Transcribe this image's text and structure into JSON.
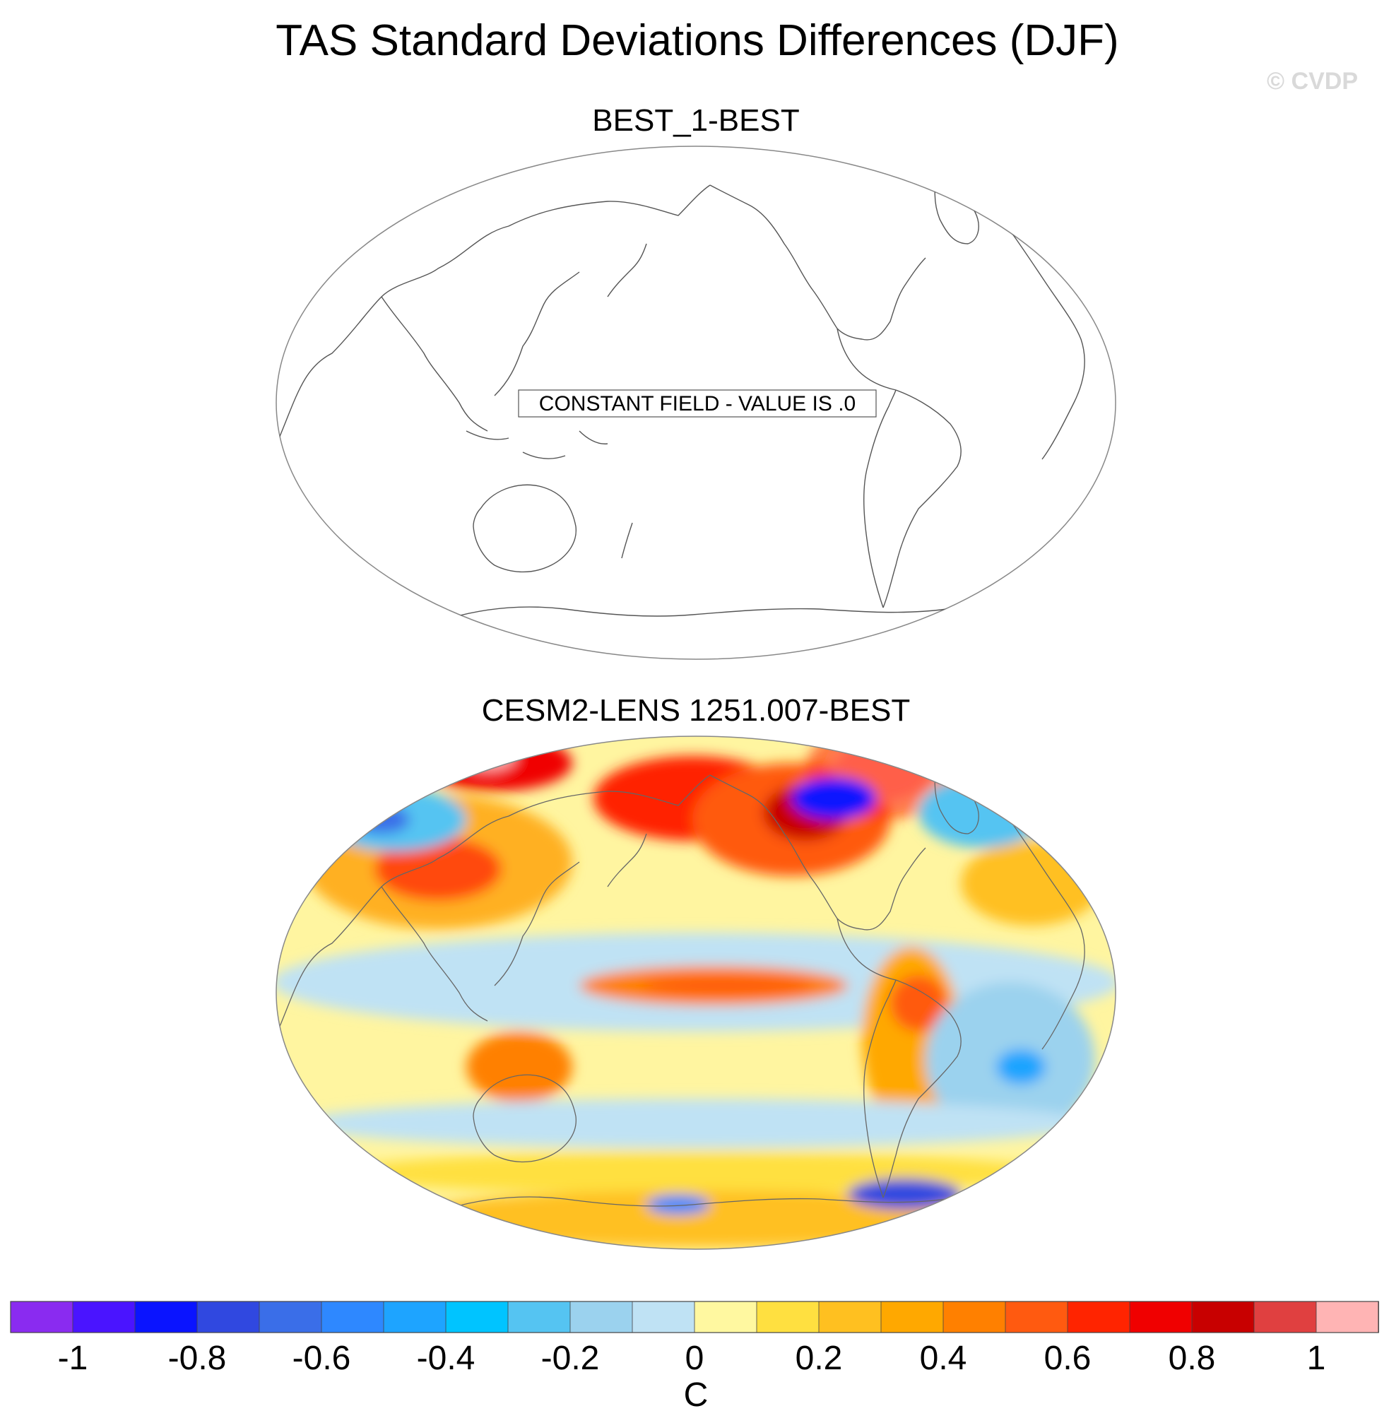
{
  "figure": {
    "title": "TAS Standard Deviations Differences (DJF)",
    "watermark": "© CVDP"
  },
  "panels": [
    {
      "id": "top",
      "title": "BEST_1-BEST",
      "note": "CONSTANT FIELD - VALUE IS .0",
      "filled": false
    },
    {
      "id": "bottom",
      "title": "CESM2-LENS 1251.007-BEST",
      "filled": true
    }
  ],
  "colorbar": {
    "unit": "C",
    "tick_labels": [
      "-1",
      "-0.8",
      "-0.6",
      "-0.4",
      "-0.2",
      "0",
      "0.2",
      "0.4",
      "0.6",
      "0.8",
      "1"
    ],
    "colors": [
      "#8a2bf0",
      "#4a14ff",
      "#0a14ff",
      "#3048e0",
      "#3a6ee8",
      "#2e88ff",
      "#1ea4ff",
      "#00c4ff",
      "#55c4f2",
      "#9bd2ee",
      "#bfe2f4",
      "#fff8a0",
      "#ffe040",
      "#ffc020",
      "#ffa800",
      "#ff8000",
      "#ff5a10",
      "#ff2400",
      "#f00000",
      "#c80000",
      "#e04040",
      "#ffb4b4"
    ]
  }
}
